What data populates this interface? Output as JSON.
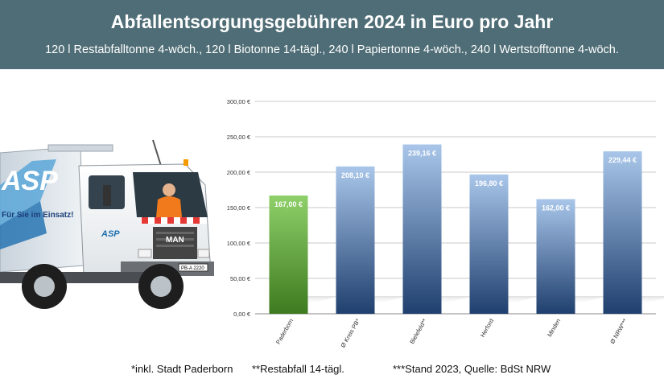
{
  "header": {
    "title": "Abfallentsorgungsgebühren 2024 in Euro pro Jahr",
    "subtitle": "120 l Restabfalltonne 4-wöch., 120 l Biotonne 14-tägl., 240 l Papiertonne 4-wöch., 240 l Wertstofftonne 4-wöch."
  },
  "truck": {
    "brand_text": "ASP",
    "slogan": "Für Sie im Einsatz!",
    "cab_logo": "ASP",
    "grille_logo": "MAN",
    "plate": "PB-A 2220"
  },
  "colors": {
    "header_bg": "#4f6d76",
    "highlight_bar_top": "#8fd06a",
    "highlight_bar_bottom": "#3e7a1f",
    "bar_top": "#a9c6ea",
    "bar_bottom": "#1f3f6e"
  },
  "chart_data": {
    "type": "bar",
    "categories": [
      "Paderborn",
      "Ø Kreis PB*",
      "Bielefeld**",
      "Herford",
      "Minden",
      "Ø NRW***"
    ],
    "values": [
      167.0,
      208.1,
      239.16,
      196.8,
      162.0,
      229.44
    ],
    "value_labels": [
      "167,00 €",
      "208,10 €",
      "239,16 €",
      "196,80 €",
      "162,00 €",
      "229,44 €"
    ],
    "highlight_index": 0,
    "y_ticks": [
      "0,00 €",
      "50,00 €",
      "100,00 €",
      "150,00 €",
      "200,00 €",
      "250,00 €",
      "300,00 €"
    ],
    "y_tick_values": [
      0,
      50,
      100,
      150,
      200,
      250,
      300
    ],
    "ylim": [
      0,
      300
    ],
    "grid": true,
    "legend": "none"
  },
  "footnotes": [
    "*inkl. Stadt Paderborn",
    "**Restabfall 14-tägl.",
    "***Stand 2023, Quelle: BdSt NRW"
  ]
}
